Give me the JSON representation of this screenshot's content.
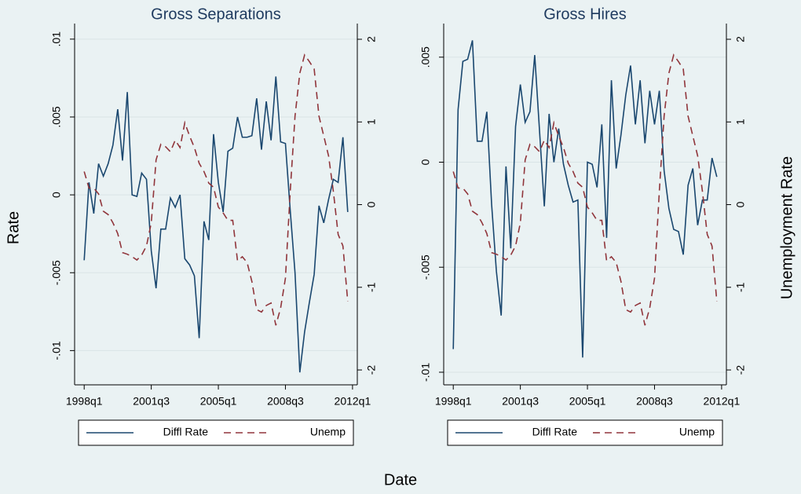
{
  "chart_data": [
    {
      "type": "line",
      "title": "Gross Separations",
      "x": [
        152,
        153,
        154,
        155,
        156,
        157,
        158,
        159,
        160,
        161,
        162,
        163,
        164,
        165,
        166,
        167,
        168,
        169,
        170,
        171,
        172,
        173,
        174,
        175,
        176,
        177,
        178,
        179,
        180,
        181,
        182,
        183,
        184,
        185,
        186,
        187,
        188,
        189,
        190,
        191,
        192,
        193,
        194,
        195,
        196,
        197,
        198,
        199,
        200,
        201,
        202,
        203,
        204,
        205,
        206,
        207
      ],
      "xlim": [
        150,
        209
      ],
      "xticks": [
        {
          "value": 152,
          "label": "1998q1"
        },
        {
          "value": 166,
          "label": "2001q3"
        },
        {
          "value": 180,
          "label": "2005q1"
        },
        {
          "value": 194,
          "label": "2008q3"
        },
        {
          "value": 208,
          "label": "2012q1"
        }
      ],
      "ylim": [
        -0.0122,
        0.011
      ],
      "yticks": [
        {
          "value": -0.01,
          "label": "-.01"
        },
        {
          "value": -0.005,
          "label": "-.005"
        },
        0,
        {
          "value": 0.005,
          "label": ".005"
        },
        {
          "value": 0.01,
          "label": ".01"
        }
      ],
      "y2lim": [
        -2.18,
        2.19
      ],
      "y2ticks": [
        -2,
        -1,
        0,
        1,
        2
      ],
      "grid": true,
      "legend": "bottom",
      "series": [
        {
          "name": "Diffl Rate",
          "color": "#1a476f",
          "linestyle": "solid",
          "values": [
            -0.0042,
            0.0008,
            -0.0012,
            0.002,
            0.0012,
            0.002,
            0.0032,
            0.0055,
            0.0022,
            0.0066,
            0,
            -0.0001,
            0.0014,
            0.001,
            -0.0036,
            -0.006,
            -0.0022,
            -0.0022,
            -0.0002,
            -0.0008,
            0,
            -0.0041,
            -0.0045,
            -0.0052,
            -0.0092,
            -0.0017,
            -0.0029,
            0.0039,
            0.0008,
            -0.0011,
            0.0028,
            0.003,
            0.005,
            0.0037,
            0.0037,
            0.0038,
            0.0062,
            0.0029,
            0.006,
            0.0035,
            0.0076,
            0.0034,
            0.0033,
            -0.001,
            -0.005,
            -0.0114,
            -0.0088,
            -0.0069,
            -0.0051,
            -0.0007,
            -0.0018,
            -0.0003,
            0.001,
            0.0008,
            0.0037,
            -0.0011
          ]
        },
        {
          "name": "Unemp",
          "color": "#90353b",
          "linestyle": "dash",
          "axis": "y2",
          "values": [
            0.4,
            0.2,
            0.2,
            0.13,
            -0.08,
            -0.12,
            -0.22,
            -0.35,
            -0.58,
            -0.6,
            -0.63,
            -0.67,
            -0.61,
            -0.5,
            -0.22,
            0.54,
            0.73,
            0.7,
            0.64,
            0.78,
            0.69,
            0.99,
            0.83,
            0.69,
            0.5,
            0.4,
            0.26,
            0.21,
            -0.03,
            -0.1,
            -0.19,
            -0.19,
            -0.68,
            -0.63,
            -0.7,
            -0.93,
            -1.27,
            -1.3,
            -1.22,
            -1.19,
            -1.46,
            -1.25,
            -0.89,
            0.16,
            1.07,
            1.59,
            1.81,
            1.73,
            1.64,
            1.07,
            0.83,
            0.59,
            0.16,
            -0.36,
            -0.5,
            -1.17
          ]
        }
      ]
    },
    {
      "type": "line",
      "title": "Gross Hires",
      "x": [
        152,
        153,
        154,
        155,
        156,
        157,
        158,
        159,
        160,
        161,
        162,
        163,
        164,
        165,
        166,
        167,
        168,
        169,
        170,
        171,
        172,
        173,
        174,
        175,
        176,
        177,
        178,
        179,
        180,
        181,
        182,
        183,
        184,
        185,
        186,
        187,
        188,
        189,
        190,
        191,
        192,
        193,
        194,
        195,
        196,
        197,
        198,
        199,
        200,
        201,
        202,
        203,
        204,
        205,
        206,
        207
      ],
      "xlim": [
        150,
        209
      ],
      "xticks": [
        {
          "value": 152,
          "label": "1998q1"
        },
        {
          "value": 166,
          "label": "2001q3"
        },
        {
          "value": 180,
          "label": "2005q1"
        },
        {
          "value": 194,
          "label": "2008q3"
        },
        {
          "value": 208,
          "label": "2012q1"
        }
      ],
      "ylim": [
        -0.0106,
        0.0066
      ],
      "yticks": [
        {
          "value": -0.01,
          "label": "-.01"
        },
        {
          "value": -0.005,
          "label": "-.005"
        },
        0,
        {
          "value": 0.005,
          "label": ".005"
        }
      ],
      "y2lim": [
        -2.18,
        2.19
      ],
      "y2ticks": [
        -2,
        -1,
        0,
        1,
        2
      ],
      "grid": true,
      "legend": "bottom",
      "series": [
        {
          "name": "Diffl Rate",
          "color": "#1a476f",
          "linestyle": "solid",
          "values": [
            -0.0089,
            0.0025,
            0.0048,
            0.0049,
            0.0058,
            0.001,
            0.001,
            0.0024,
            -0.002,
            -0.0052,
            -0.0073,
            -0.0002,
            -0.0041,
            0.0017,
            0.0037,
            0.0019,
            0.0024,
            0.0051,
            0.0015,
            -0.0021,
            0.0023,
            0,
            0.0016,
            -0.0001,
            -0.0011,
            -0.0019,
            -0.0018,
            -0.0093,
            0,
            -0.0001,
            -0.0012,
            0.0018,
            -0.0036,
            0.0039,
            -0.0003,
            0.0013,
            0.0032,
            0.0046,
            0.0018,
            0.0039,
            0.0009,
            0.0034,
            0.0018,
            0.0034,
            -0.0004,
            -0.0022,
            -0.0032,
            -0.0033,
            -0.0044,
            -0.0011,
            -0.0003,
            -0.003,
            -0.0018,
            -0.0018,
            0.0002,
            -0.0007
          ]
        },
        {
          "name": "Unemp",
          "color": "#90353b",
          "linestyle": "dash",
          "axis": "y2",
          "values": [
            0.4,
            0.2,
            0.2,
            0.13,
            -0.08,
            -0.12,
            -0.22,
            -0.35,
            -0.58,
            -0.6,
            -0.63,
            -0.67,
            -0.61,
            -0.5,
            -0.22,
            0.54,
            0.73,
            0.7,
            0.64,
            0.78,
            0.69,
            0.99,
            0.83,
            0.69,
            0.5,
            0.4,
            0.26,
            0.21,
            -0.03,
            -0.1,
            -0.19,
            -0.19,
            -0.68,
            -0.63,
            -0.7,
            -0.93,
            -1.27,
            -1.3,
            -1.22,
            -1.19,
            -1.46,
            -1.25,
            -0.89,
            0.16,
            1.07,
            1.59,
            1.81,
            1.73,
            1.64,
            1.07,
            0.83,
            0.59,
            0.16,
            -0.36,
            -0.5,
            -1.17
          ]
        }
      ]
    }
  ],
  "xlabel": "Date",
  "ylabel": "Rate",
  "y2label": "Unemployment Rate"
}
